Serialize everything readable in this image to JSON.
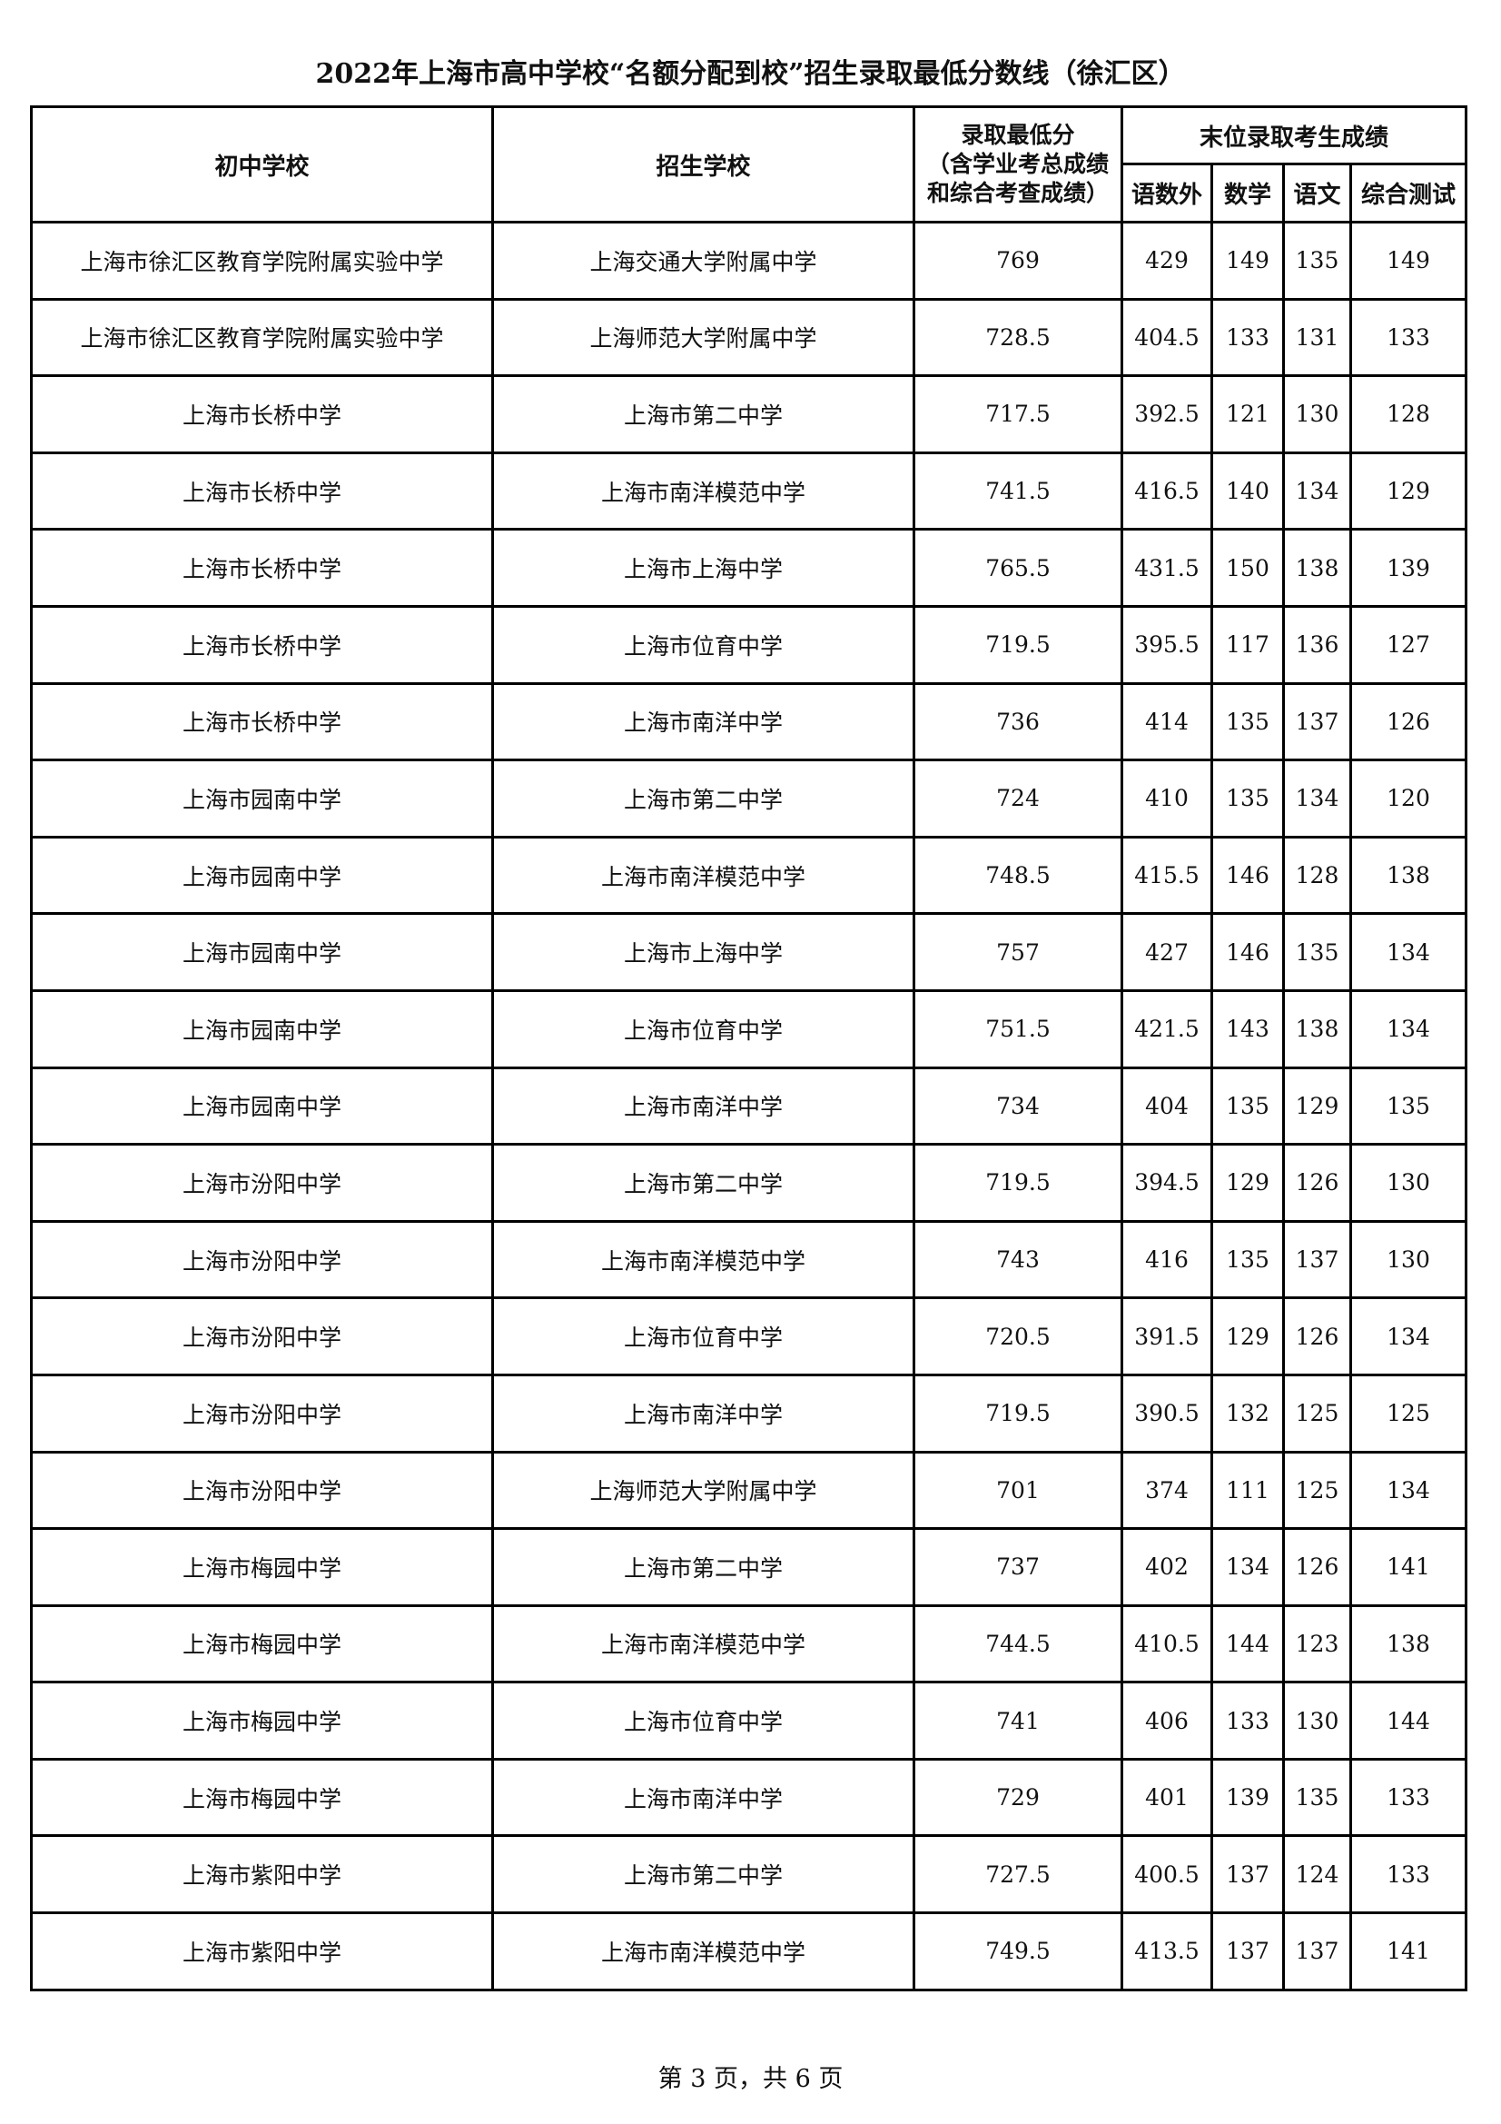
{
  "title": "2022年上海市高中学校“名额分配到校”招生录取最低分数线（徐汇区）",
  "headers": {
    "middle_school": "初中学校",
    "admitting_school": "招生学校",
    "min_score_line1": "录取最低分",
    "min_score_line2": "（含学业考总成绩",
    "min_score_line3": "和综合考查成绩）",
    "last_admitted": "末位录取考生成绩",
    "sub": [
      "语数外",
      "数学",
      "语文",
      "综合测试"
    ]
  },
  "rows": [
    [
      "上海市徐汇区教育学院附属实验中学",
      "上海交通大学附属中学",
      "769",
      "429",
      "149",
      "135",
      "149"
    ],
    [
      "上海市徐汇区教育学院附属实验中学",
      "上海师范大学附属中学",
      "728.5",
      "404.5",
      "133",
      "131",
      "133"
    ],
    [
      "上海市长桥中学",
      "上海市第二中学",
      "717.5",
      "392.5",
      "121",
      "130",
      "128"
    ],
    [
      "上海市长桥中学",
      "上海市南洋模范中学",
      "741.5",
      "416.5",
      "140",
      "134",
      "129"
    ],
    [
      "上海市长桥中学",
      "上海市上海中学",
      "765.5",
      "431.5",
      "150",
      "138",
      "139"
    ],
    [
      "上海市长桥中学",
      "上海市位育中学",
      "719.5",
      "395.5",
      "117",
      "136",
      "127"
    ],
    [
      "上海市长桥中学",
      "上海市南洋中学",
      "736",
      "414",
      "135",
      "137",
      "126"
    ],
    [
      "上海市园南中学",
      "上海市第二中学",
      "724",
      "410",
      "135",
      "134",
      "120"
    ],
    [
      "上海市园南中学",
      "上海市南洋模范中学",
      "748.5",
      "415.5",
      "146",
      "128",
      "138"
    ],
    [
      "上海市园南中学",
      "上海市上海中学",
      "757",
      "427",
      "146",
      "135",
      "134"
    ],
    [
      "上海市园南中学",
      "上海市位育中学",
      "751.5",
      "421.5",
      "143",
      "138",
      "134"
    ],
    [
      "上海市园南中学",
      "上海市南洋中学",
      "734",
      "404",
      "135",
      "129",
      "135"
    ],
    [
      "上海市汾阳中学",
      "上海市第二中学",
      "719.5",
      "394.5",
      "129",
      "126",
      "130"
    ],
    [
      "上海市汾阳中学",
      "上海市南洋模范中学",
      "743",
      "416",
      "135",
      "137",
      "130"
    ],
    [
      "上海市汾阳中学",
      "上海市位育中学",
      "720.5",
      "391.5",
      "129",
      "126",
      "134"
    ],
    [
      "上海市汾阳中学",
      "上海市南洋中学",
      "719.5",
      "390.5",
      "132",
      "125",
      "125"
    ],
    [
      "上海市汾阳中学",
      "上海师范大学附属中学",
      "701",
      "374",
      "111",
      "125",
      "134"
    ],
    [
      "上海市梅园中学",
      "上海市第二中学",
      "737",
      "402",
      "134",
      "126",
      "141"
    ],
    [
      "上海市梅园中学",
      "上海市南洋模范中学",
      "744.5",
      "410.5",
      "144",
      "123",
      "138"
    ],
    [
      "上海市梅园中学",
      "上海市位育中学",
      "741",
      "406",
      "133",
      "130",
      "144"
    ],
    [
      "上海市梅园中学",
      "上海市南洋中学",
      "729",
      "401",
      "139",
      "135",
      "133"
    ],
    [
      "上海市紫阳中学",
      "上海市第二中学",
      "727.5",
      "400.5",
      "137",
      "124",
      "133"
    ],
    [
      "上海市紫阳中学",
      "上海市南洋模范中学",
      "749.5",
      "413.5",
      "137",
      "137",
      "141"
    ]
  ],
  "footer": "第 3 页，共 6 页"
}
